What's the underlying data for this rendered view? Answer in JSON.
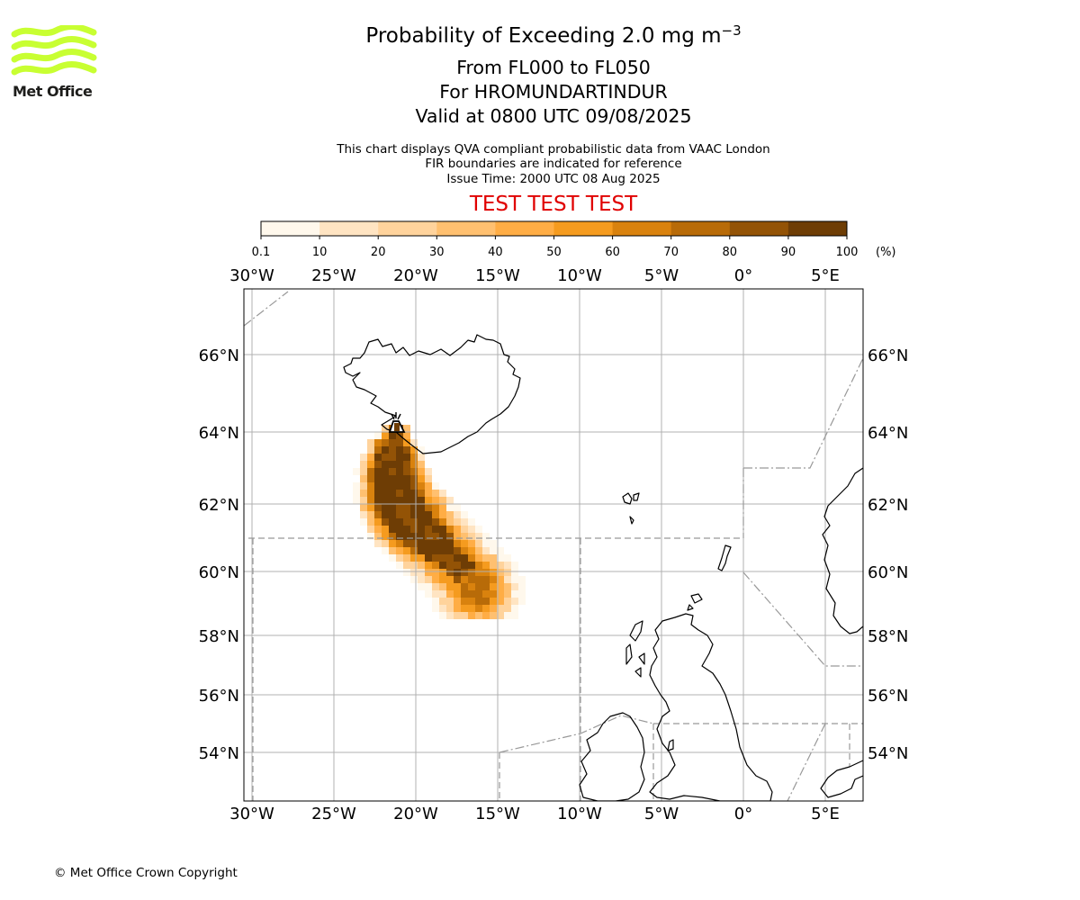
{
  "logo": {
    "text": "Met Office",
    "wave_color": "#c8ff32"
  },
  "title": {
    "prefix": "Probability of Exceeding 2.0 mg m",
    "exponent": "−3"
  },
  "subtitle_lines": [
    "From FL000 to FL050",
    "For HROMUNDARTINDUR",
    "Valid at 0800 UTC 09/08/2025"
  ],
  "info_lines": [
    "This chart displays QVA compliant probabilistic data from VAAC London",
    "FIR boundaries are indicated for reference",
    "Issue Time: 2000 UTC 08 Aug 2025"
  ],
  "test_banner": "TEST TEST TEST",
  "test_color": "#e00000",
  "colorbar": {
    "ticks": [
      "0.1",
      "10",
      "20",
      "30",
      "40",
      "50",
      "60",
      "70",
      "80",
      "90",
      "100"
    ],
    "unit": "(%)",
    "colors": [
      "#fff8ec",
      "#ffe4c2",
      "#ffd39c",
      "#ffc070",
      "#ffad45",
      "#f59b1f",
      "#d9820e",
      "#b86b08",
      "#935306",
      "#6e3d05"
    ]
  },
  "map": {
    "lon_labels": [
      "30°W",
      "25°W",
      "20°W",
      "15°W",
      "10°W",
      "5°W",
      "0°",
      "5°E"
    ],
    "lat_labels": [
      "66°N",
      "64°N",
      "62°N",
      "60°N",
      "58°N",
      "56°N",
      "54°N"
    ],
    "volcano_name": "HROMUNDARTINDUR",
    "ash_cloud": {
      "description_levels": [
        0.1,
        10,
        20,
        30,
        40,
        50,
        60,
        70,
        80,
        90,
        100
      ]
    }
  },
  "copyright": "© Met Office Crown Copyright"
}
